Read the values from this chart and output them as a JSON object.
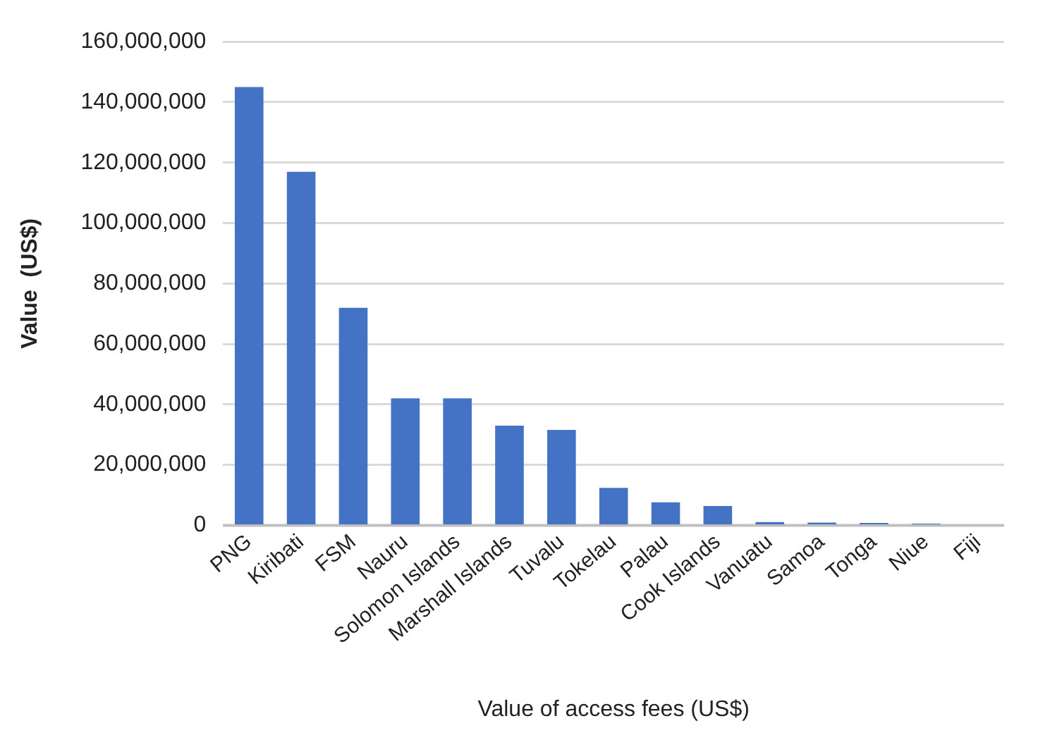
{
  "chart_data": {
    "type": "bar",
    "xlabel": "Value of access fees (US$)",
    "ylabel": "Value  (US$)",
    "categories": [
      "PNG",
      "Kiribati",
      "FSM",
      "Nauru",
      "Solomon Islands",
      "Marshall Islands",
      "Tuvalu",
      "Tokelau",
      "Palau",
      "Cook Islands",
      "Vanuatu",
      "Samoa",
      "Tonga",
      "Niue",
      "Fiji"
    ],
    "values": [
      145000000,
      117000000,
      72000000,
      42000000,
      42000000,
      33000000,
      31600000,
      12400000,
      7600000,
      6400000,
      1100000,
      900000,
      800000,
      600000,
      0
    ],
    "color": "#4472c4",
    "ylim": [
      0,
      160000000
    ],
    "yticks": [
      0,
      {
        "value": 20000000,
        "label": "20,000,000"
      },
      {
        "value": 40000000,
        "label": "40,000,000"
      },
      {
        "value": 60000000,
        "label": "60,000,000"
      },
      {
        "value": 80000000,
        "label": "80,000,000"
      },
      {
        "value": 100000000,
        "label": "100,000,000"
      },
      {
        "value": 120000000,
        "label": "120,000,000"
      },
      {
        "value": 140000000,
        "label": "140,000,000"
      },
      {
        "value": 160000000,
        "label": "160,000,000"
      }
    ],
    "grid": "y",
    "legend": false
  }
}
